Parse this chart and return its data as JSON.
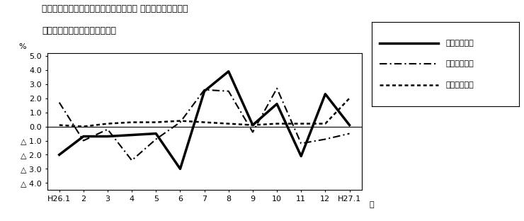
{
  "title_line1": "第４図　賃金、労働時間、常用雇用指数 対前年同月比の推移",
  "title_line2": "（規模５人以上　調査産業計）",
  "xlabel": "月",
  "ylabel": "%",
  "x_labels": [
    "H26.1",
    "2",
    "3",
    "4",
    "5",
    "6",
    "7",
    "8",
    "9",
    "10",
    "11",
    "12",
    "H27.1"
  ],
  "x_values": [
    1,
    2,
    3,
    4,
    5,
    6,
    7,
    8,
    9,
    10,
    11,
    12,
    13
  ],
  "ylim": [
    -4.5,
    5.2
  ],
  "yticks": [
    5.0,
    4.0,
    3.0,
    2.0,
    1.0,
    0.0,
    -1.0,
    -2.0,
    -3.0,
    -4.0
  ],
  "ytick_labels": [
    "5.0",
    "4.0",
    "3.0",
    "2.0",
    "1.0",
    "0.0",
    "△ 1.0",
    "△ 2.0",
    "△ 3.0",
    "△ 4.0"
  ],
  "series": [
    {
      "name": "現金給与総額",
      "values": [
        -2.0,
        -0.7,
        -0.7,
        -0.6,
        -0.5,
        -3.0,
        2.5,
        3.9,
        0.1,
        1.6,
        -2.1,
        2.3,
        0.1
      ],
      "linestyle": "solid",
      "linewidth": 2.5,
      "color": "#000000"
    },
    {
      "name": "総実労働時間",
      "values": [
        1.7,
        -1.0,
        -0.2,
        -2.4,
        -0.9,
        0.3,
        2.6,
        2.5,
        -0.4,
        2.7,
        -1.2,
        -0.9,
        -0.5
      ],
      "linestyle": "dashdot",
      "linewidth": 1.5,
      "color": "#000000"
    },
    {
      "name": "常用雇用指数",
      "values": [
        0.1,
        0.0,
        0.2,
        0.3,
        0.3,
        0.4,
        0.3,
        0.2,
        0.1,
        0.2,
        0.2,
        0.2,
        2.0
      ],
      "linestyle": "dotted",
      "linewidth": 1.8,
      "color": "#000000"
    }
  ],
  "background_color": "#ffffff"
}
